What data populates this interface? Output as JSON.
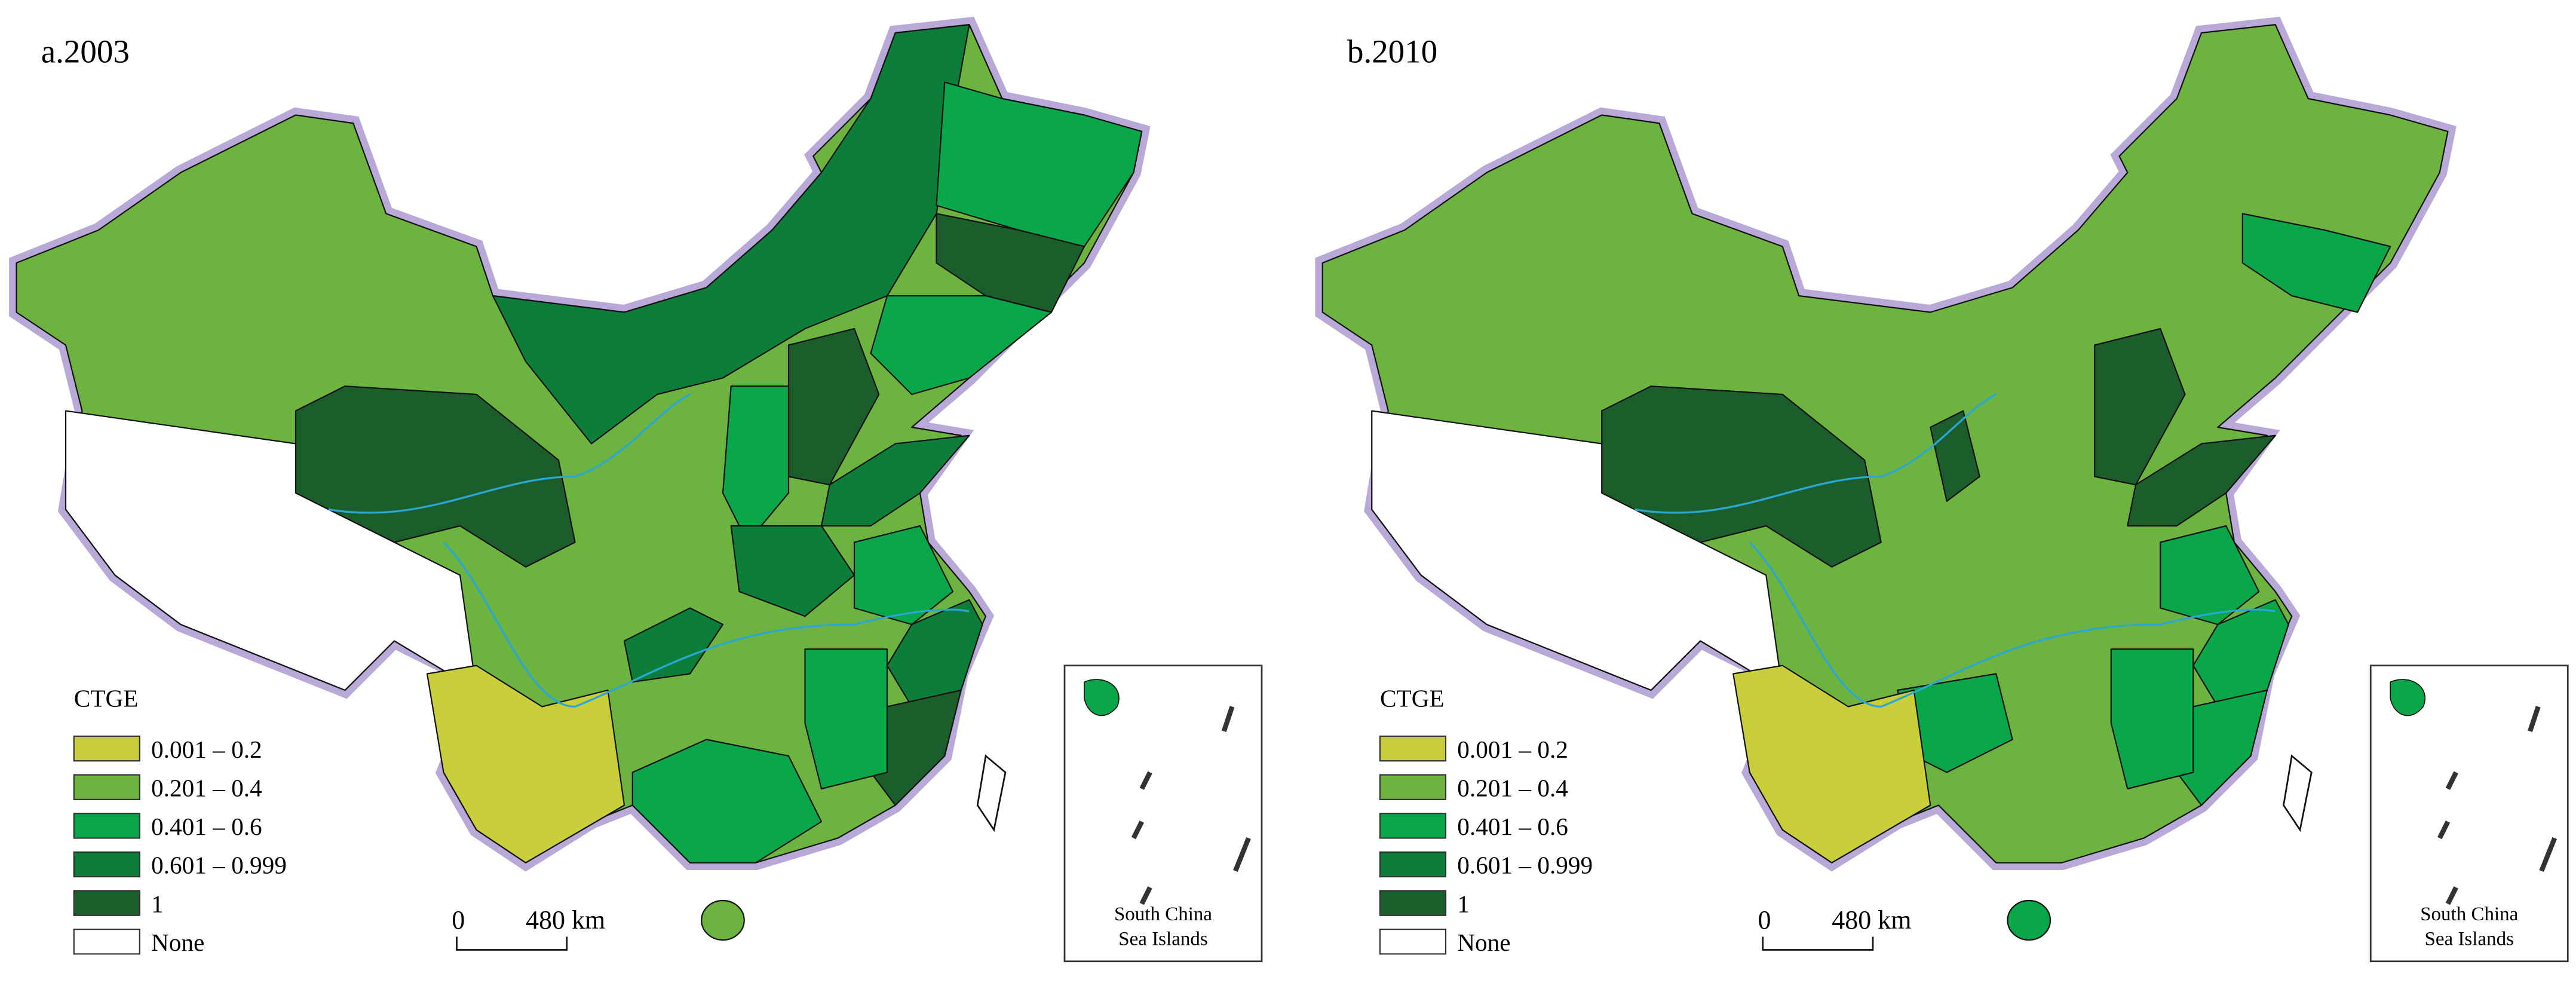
{
  "panels": [
    {
      "title": "a.2003",
      "legend": {
        "title": "CTGE",
        "items": [
          {
            "label": "0.001 – 0.2",
            "color": "#c8cf3a"
          },
          {
            "label": "0.201 – 0.4",
            "color": "#6db33f"
          },
          {
            "label": "0.401 – 0.6",
            "color": "#0aa64a"
          },
          {
            "label": "0.601 – 0.999",
            "color": "#0c7e3a"
          },
          {
            "label": "1",
            "color": "#1b5e2b"
          },
          {
            "label": "None",
            "color": "#ffffff"
          }
        ]
      },
      "scale": {
        "zero": "0",
        "distance": "480 km"
      },
      "inset": [
        "South China",
        "Sea Islands"
      ]
    },
    {
      "title": "b.2010",
      "legend": {
        "title": "CTGE",
        "items": [
          {
            "label": "0.001 – 0.2",
            "color": "#c8cf3a"
          },
          {
            "label": "0.201 – 0.4",
            "color": "#6db33f"
          },
          {
            "label": "0.401 – 0.6",
            "color": "#0aa64a"
          },
          {
            "label": "0.601 – 0.999",
            "color": "#0c7e3a"
          },
          {
            "label": "1",
            "color": "#1b5e2b"
          },
          {
            "label": "None",
            "color": "#ffffff"
          }
        ]
      },
      "scale": {
        "zero": "0",
        "distance": "480 km"
      },
      "inset": [
        "South China",
        "Sea Islands"
      ]
    }
  ]
}
